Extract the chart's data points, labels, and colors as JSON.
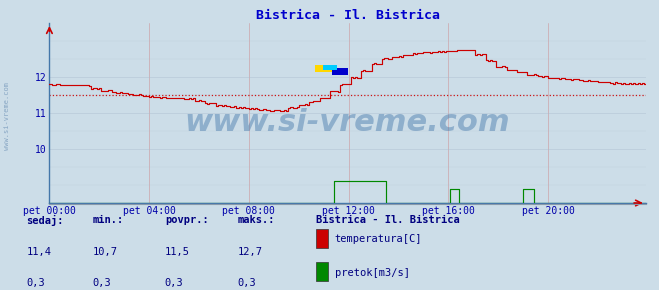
{
  "title": "Bistrica - Il. Bistrica",
  "title_color": "#0000cc",
  "bg_color": "#ccdde8",
  "plot_bg_color": "#ccdde8",
  "grid_color_v": "#cc6666",
  "grid_color_h": "#aabbcc",
  "tick_label_color": "#0000aa",
  "xtick_labels": [
    "pet 00:00",
    "pet 04:00",
    "pet 08:00",
    "pet 12:00",
    "pet 16:00",
    "pet 20:00"
  ],
  "xtick_positions": [
    0,
    48,
    96,
    144,
    192,
    240
  ],
  "ytick_values": [
    10,
    11,
    12
  ],
  "ylim": [
    8.5,
    13.5
  ],
  "xlim": [
    0,
    287
  ],
  "temp_color": "#cc0000",
  "flow_color": "#008800",
  "avg_line_color": "#cc0000",
  "avg_value": 11.5,
  "watermark_text": "www.si-vreme.com",
  "watermark_color": "#4477aa",
  "watermark_alpha": 0.45,
  "watermark_fontsize": 22,
  "logo_colors": [
    "#FFD700",
    "#0000cc",
    "#00aaff"
  ],
  "legend_title": "Bistrica - Il. Bistrica",
  "legend_title_color": "#000080",
  "legend_items": [
    "temperatura[C]",
    "pretok[m3/s]"
  ],
  "legend_colors": [
    "#cc0000",
    "#008800"
  ],
  "footer_labels": [
    "sedaj:",
    "min.:",
    "povpr.:",
    "maks.:"
  ],
  "footer_temp": [
    "11,4",
    "10,7",
    "11,5",
    "12,7"
  ],
  "footer_flow": [
    "0,3",
    "0,3",
    "0,3",
    "0,3"
  ],
  "footer_color": "#000080",
  "side_text": "www.si-vreme.com",
  "side_text_color": "#7799bb",
  "arrow_color": "#cc0000",
  "spine_color": "#4477aa"
}
